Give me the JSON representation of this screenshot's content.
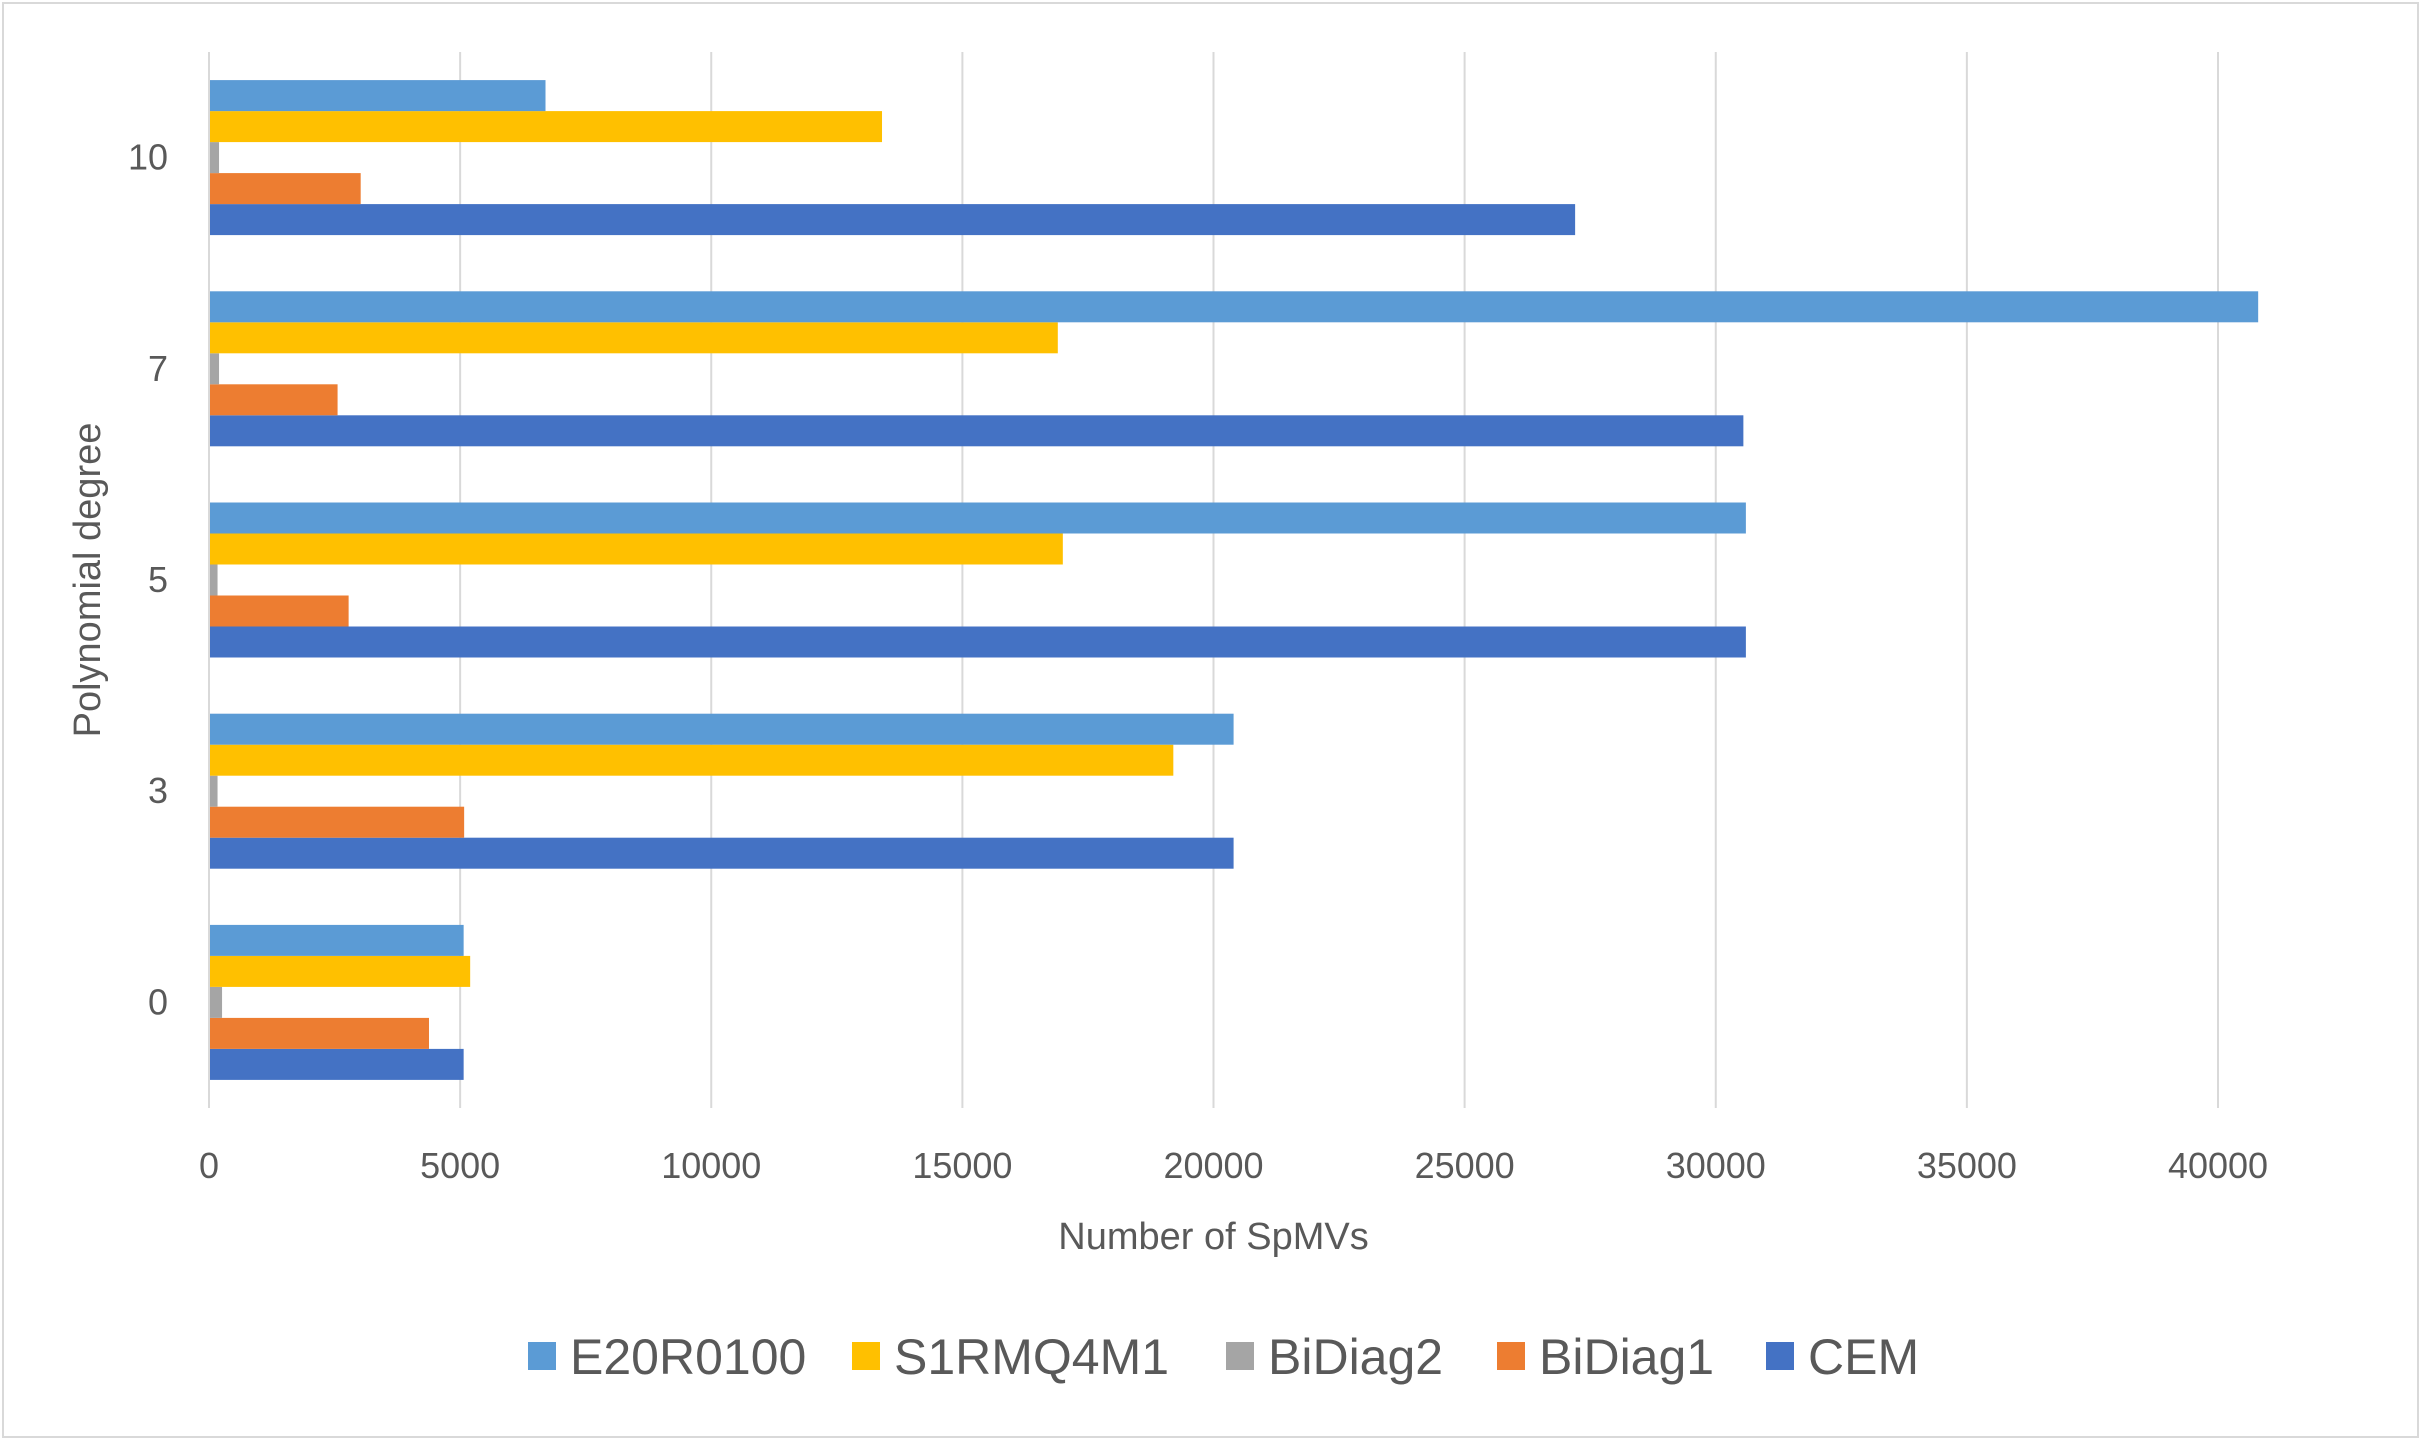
{
  "chart_data": {
    "type": "bar",
    "orientation": "horizontal",
    "categories": [
      "0",
      "3",
      "5",
      "7",
      "10"
    ],
    "series": [
      {
        "name": "CEM",
        "color": "#4472c4",
        "values": [
          5070,
          20400,
          30600,
          30550,
          27200
        ]
      },
      {
        "name": "BiDiag1",
        "color": "#ed7d31",
        "values": [
          4380,
          5080,
          2780,
          2560,
          3020
        ]
      },
      {
        "name": "BiDiag2",
        "color": "#a5a5a5",
        "values": [
          260,
          170,
          170,
          200,
          200
        ]
      },
      {
        "name": "S1RMQ4M1",
        "color": "#ffc000",
        "values": [
          5200,
          19200,
          17000,
          16900,
          13400
        ]
      },
      {
        "name": "E20R0100",
        "color": "#5b9bd5",
        "values": [
          5070,
          20400,
          30600,
          40800,
          6700
        ]
      }
    ],
    "xlim": [
      0,
      40000
    ],
    "xticks": [
      "0",
      "5000",
      "10000",
      "15000",
      "20000",
      "25000",
      "30000",
      "35000",
      "40000"
    ],
    "xlabel": "Number of SpMVs",
    "ylabel": "Polynomial degree",
    "grid": "vertical",
    "legend": {
      "position": "bottom",
      "order": [
        "E20R0100",
        "S1RMQ4M1",
        "BiDiag2",
        "BiDiag1",
        "CEM"
      ]
    }
  }
}
